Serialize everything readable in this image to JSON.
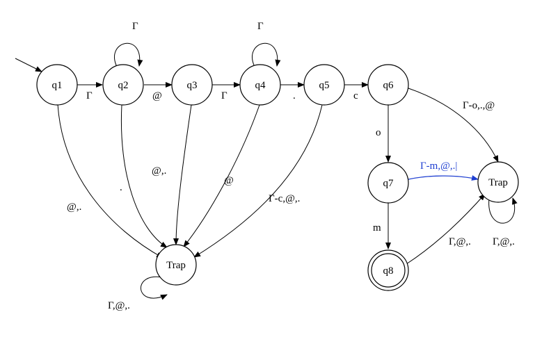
{
  "states": {
    "q1": "q1",
    "q2": "q2",
    "q3": "q3",
    "q4": "q4",
    "q5": "q5",
    "q6": "q6",
    "q7": "q7",
    "q8": "q8",
    "trap_left": "Trap",
    "trap_right": "Trap"
  },
  "transitions": {
    "q1_q2": "Γ",
    "q2_loop": "Γ",
    "q2_q3": "@",
    "q3_q4": "Γ",
    "q4_loop": "Γ",
    "q4_q5": ".",
    "q5_q6": "c",
    "q6_q7": "o",
    "q7_q8": "m",
    "q1_trap": "@,.",
    "q2_trap": ".",
    "q3_trap": "@,.",
    "q4_trap": "@",
    "q5_trap": "Γ-c,@,.",
    "trap_left_loop": "Γ,@,.",
    "q6_trap": "Γ-o,.,@",
    "q7_trap": "Γ-m,@,.|",
    "q8_trap": "Γ,@,.",
    "trap_right_loop": "Γ,@,."
  },
  "colors": {
    "highlight": "#1f3fd1"
  }
}
